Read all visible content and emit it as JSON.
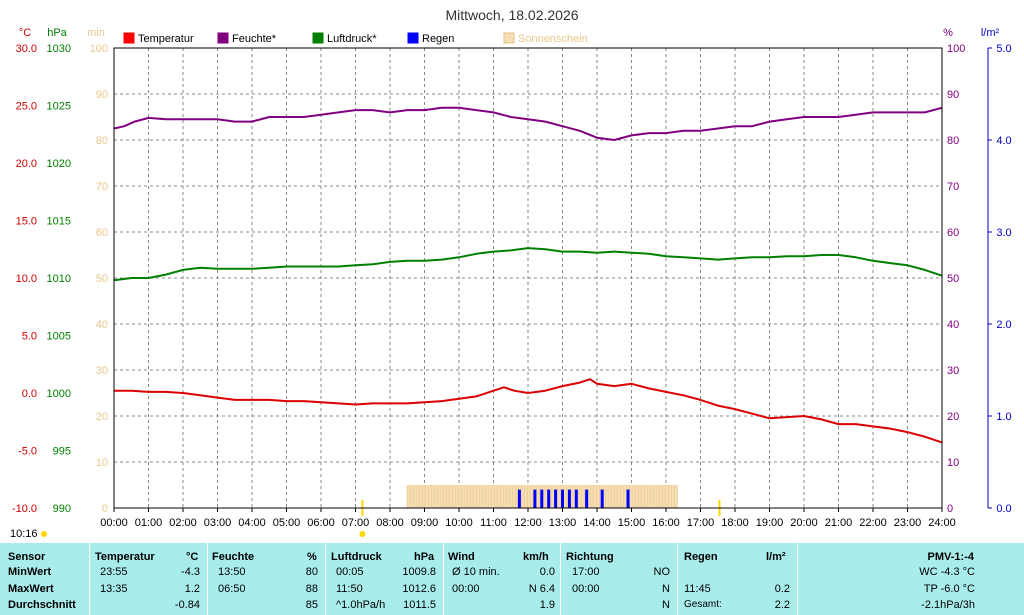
{
  "title": "Mittwoch, 18.02.2026",
  "time_label": "10:16",
  "axes": {
    "temp_unit": "°C",
    "press_unit": "hPa",
    "sun_unit": "min",
    "hum_unit": "%",
    "rain_unit": "l/m²"
  },
  "legend": [
    {
      "label": "Temperatur",
      "color": "#ff0000"
    },
    {
      "label": "Feuchte*",
      "color": "#800080"
    },
    {
      "label": "Luftdruck*",
      "color": "#008000"
    },
    {
      "label": "Regen",
      "color": "#0000ff"
    },
    {
      "label": "Sonnenschein",
      "color": "#f5deb3"
    }
  ],
  "chart_data": {
    "type": "line",
    "x_range": [
      "00:00",
      "24:00"
    ],
    "x_ticks": [
      "00:00",
      "01:00",
      "02:00",
      "03:00",
      "04:00",
      "05:00",
      "06:00",
      "07:00",
      "08:00",
      "09:00",
      "10:00",
      "11:00",
      "12:00",
      "13:00",
      "14:00",
      "15:00",
      "16:00",
      "17:00",
      "18:00",
      "19:00",
      "20:00",
      "21:00",
      "22:00",
      "23:00",
      "24:00"
    ],
    "grid": true,
    "legend_position": "top",
    "y_axes": {
      "temperature": {
        "unit": "°C",
        "range": [
          -10,
          30
        ],
        "ticks": [
          "30.0",
          "25.0",
          "20.0",
          "15.0",
          "10.0",
          "5.0",
          "0.0",
          "-5.0",
          "-10.0"
        ],
        "color": "#cc0000"
      },
      "pressure": {
        "unit": "hPa",
        "range": [
          990,
          1030
        ],
        "ticks": [
          "1030",
          "1025",
          "1020",
          "1015",
          "1010",
          "1005",
          "1000",
          "995",
          "990"
        ],
        "color": "#008000"
      },
      "sunshine": {
        "unit": "min",
        "range": [
          0,
          100
        ],
        "ticks": [
          "100",
          "90",
          "80",
          "70",
          "60",
          "50",
          "40",
          "30",
          "20",
          "10",
          "0"
        ],
        "color": "#f5deb3"
      },
      "humidity": {
        "unit": "%",
        "range": [
          0,
          100
        ],
        "ticks": [
          "100",
          "90",
          "80",
          "70",
          "60",
          "50",
          "40",
          "30",
          "20",
          "10",
          "0"
        ],
        "color": "#800080"
      },
      "rain": {
        "unit": "l/m²",
        "range": [
          0,
          5
        ],
        "ticks": [
          "5.0",
          "4.0",
          "3.0",
          "2.0",
          "1.0",
          "0.0"
        ],
        "color": "#0000cc"
      }
    },
    "series": [
      {
        "name": "Temperatur",
        "axis": "temperature",
        "color": "#dd0000",
        "x": [
          0,
          0.5,
          1,
          1.5,
          2,
          2.5,
          3,
          3.5,
          4,
          4.5,
          5,
          5.5,
          6,
          6.5,
          7,
          7.5,
          8,
          8.5,
          9,
          9.5,
          10,
          10.5,
          11,
          11.3,
          11.6,
          12,
          12.5,
          13,
          13.5,
          13.8,
          14,
          14.5,
          15,
          15.5,
          16,
          16.5,
          17,
          17.5,
          18,
          18.5,
          19,
          19.5,
          20,
          20.5,
          21,
          21.5,
          22,
          22.5,
          23,
          23.5,
          24
        ],
        "y": [
          0.2,
          0.2,
          0.1,
          0.1,
          0,
          -0.2,
          -0.4,
          -0.6,
          -0.6,
          -0.6,
          -0.7,
          -0.7,
          -0.8,
          -0.9,
          -1,
          -0.9,
          -0.9,
          -0.9,
          -0.8,
          -0.7,
          -0.5,
          -0.3,
          0.2,
          0.5,
          0.2,
          0,
          0.2,
          0.6,
          0.9,
          1.2,
          0.8,
          0.6,
          0.8,
          0.4,
          0.1,
          -0.2,
          -0.6,
          -1.1,
          -1.4,
          -1.8,
          -2.2,
          -2.1,
          -2,
          -2.3,
          -2.7,
          -2.7,
          -2.9,
          -3.1,
          -3.4,
          -3.8,
          -4.3
        ]
      },
      {
        "name": "Feuchte*",
        "axis": "humidity",
        "color": "#800080",
        "x": [
          0,
          0.3,
          0.6,
          1,
          1.5,
          2,
          2.5,
          3,
          3.5,
          4,
          4.5,
          5,
          5.5,
          6,
          6.5,
          7,
          7.5,
          8,
          8.5,
          9,
          9.5,
          10,
          10.5,
          11,
          11.5,
          12,
          12.5,
          13,
          13.5,
          14,
          14.5,
          15,
          15.5,
          16,
          16.5,
          17,
          17.5,
          18,
          18.5,
          19,
          19.5,
          20,
          20.5,
          21,
          21.5,
          22,
          22.5,
          23,
          23.5,
          24
        ],
        "y": [
          82.5,
          83,
          84,
          84.8,
          84.5,
          84.5,
          84.5,
          84.5,
          84,
          84,
          85,
          85,
          85,
          85.5,
          86,
          86.5,
          86.5,
          86,
          86.5,
          86.5,
          87,
          87,
          86.5,
          86,
          85,
          84.5,
          84,
          83,
          82,
          80.5,
          80,
          81,
          81.5,
          81.5,
          82,
          82,
          82.5,
          83,
          83,
          84,
          84.5,
          85,
          85,
          85,
          85.5,
          86,
          86,
          86,
          86,
          87
        ]
      },
      {
        "name": "Luftdruck*",
        "axis": "pressure",
        "color": "#008000",
        "x": [
          0,
          0.5,
          1,
          1.5,
          2,
          2.5,
          3,
          3.5,
          4,
          4.5,
          5,
          5.5,
          6,
          6.5,
          7,
          7.5,
          8,
          8.5,
          9,
          9.5,
          10,
          10.5,
          11,
          11.5,
          12,
          12.5,
          13,
          13.5,
          14,
          14.5,
          15,
          15.5,
          16,
          16.5,
          17,
          17.5,
          18,
          18.5,
          19,
          19.5,
          20,
          20.5,
          21,
          21.5,
          22,
          22.5,
          23,
          23.5,
          24
        ],
        "y": [
          1009.8,
          1010,
          1010,
          1010.3,
          1010.7,
          1010.9,
          1010.8,
          1010.8,
          1010.8,
          1010.9,
          1011,
          1011,
          1011,
          1011,
          1011.1,
          1011.2,
          1011.4,
          1011.5,
          1011.5,
          1011.6,
          1011.8,
          1012.1,
          1012.3,
          1012.4,
          1012.6,
          1012.5,
          1012.3,
          1012.3,
          1012.2,
          1012.3,
          1012.2,
          1012.1,
          1011.9,
          1011.8,
          1011.7,
          1011.6,
          1011.7,
          1011.8,
          1011.8,
          1011.9,
          1011.9,
          1012,
          1012,
          1011.8,
          1011.5,
          1011.3,
          1011.1,
          1010.7,
          1010.2
        ]
      },
      {
        "name": "Sonnenschein",
        "axis": "sunshine",
        "type": "bar",
        "color": "#f5deb3",
        "x_start": "08:30",
        "x_end": "16:20",
        "value": 5
      },
      {
        "name": "Regen",
        "axis": "rain",
        "type": "bar",
        "color": "#0000ff",
        "x": [
          11.75,
          12.2,
          12.4,
          12.6,
          12.8,
          13.0,
          13.2,
          13.4,
          13.7,
          14.15,
          14.9
        ],
        "y": [
          0.2,
          0.2,
          0.2,
          0.2,
          0.2,
          0.2,
          0.2,
          0.2,
          0.2,
          0.2,
          0.2
        ]
      }
    ]
  },
  "footer": {
    "headers": {
      "sensor": "Sensor",
      "temperature": "Temperatur",
      "temp_unit": "°C",
      "humidity": "Feuchte",
      "hum_unit": "%",
      "pressure": "Luftdruck",
      "press_unit": "hPa",
      "wind": "Wind",
      "wind_unit": "km/h",
      "direction": "Richtung",
      "rain": "Regen",
      "rain_unit": "l/m²",
      "pmv": "PMV-1:-4"
    },
    "rows": [
      {
        "label": "MinWert",
        "t_time": "23:55",
        "t_val": "-4.3",
        "h_time": "13:50",
        "h_val": "80",
        "p_time": "00:05",
        "p_val": "1009.8",
        "w_label": "Ø 10 min.",
        "w_val": "0.0",
        "d_time": "17:00",
        "d_val": "NO",
        "r_time": "",
        "r_val": "",
        "pmv": "WC -4.3 °C"
      },
      {
        "label": "MaxWert",
        "t_time": "13:35",
        "t_val": "1.2",
        "h_time": "06:50",
        "h_val": "88",
        "p_time": "11:50",
        "p_val": "1012.6",
        "w_label": "00:00",
        "w_val": "N 6.4",
        "d_time": "00:00",
        "d_val": "N",
        "r_time": "11:45",
        "r_val": "0.2",
        "pmv": "TP -6.0 °C"
      },
      {
        "label": "Durchschnitt",
        "t_time": "",
        "t_val": "-0.84",
        "h_time": "",
        "h_val": "85",
        "p_time": "^1.0hPa/h",
        "p_val": "1011.5",
        "w_label": "",
        "w_val": "1.9",
        "d_time": "",
        "d_val": "N",
        "r_time": "Gesamt:",
        "r_val": "2.2",
        "pmv": "-2.1hPa/3h"
      }
    ]
  }
}
